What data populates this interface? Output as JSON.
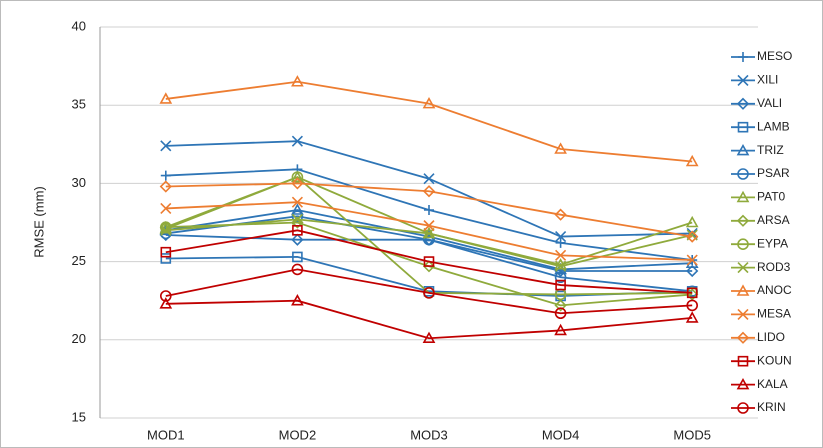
{
  "chart_data": {
    "type": "line",
    "y_label": "RMSE (mm)",
    "categories": [
      "MOD1",
      "MOD2",
      "MOD3",
      "MOD4",
      "MOD5"
    ],
    "ylim": [
      15,
      40
    ],
    "yticks": [
      15,
      20,
      25,
      30,
      35,
      40
    ],
    "grid": true,
    "legend": "right",
    "series": [
      {
        "name": "MESO",
        "color": "#2e75b6",
        "marker": "plus",
        "values": [
          30.5,
          30.9,
          28.3,
          26.2,
          25.1
        ]
      },
      {
        "name": "XILI",
        "color": "#2e75b6",
        "marker": "x",
        "values": [
          32.4,
          32.7,
          30.3,
          26.6,
          26.8
        ]
      },
      {
        "name": "VALI",
        "color": "#2e75b6",
        "marker": "diamond",
        "values": [
          26.7,
          26.4,
          26.4,
          24.4,
          24.4
        ]
      },
      {
        "name": "LAMB",
        "color": "#2e75b6",
        "marker": "square",
        "values": [
          25.2,
          25.3,
          23.1,
          22.8,
          23.1
        ]
      },
      {
        "name": "TRIZ",
        "color": "#2e75b6",
        "marker": "triangle",
        "values": [
          27.0,
          28.3,
          26.6,
          24.5,
          24.9
        ]
      },
      {
        "name": "PSAR",
        "color": "#2e75b6",
        "marker": "circle",
        "values": [
          26.8,
          27.9,
          26.4,
          24.0,
          23.1
        ]
      },
      {
        "name": "PAT0",
        "color": "#8faa3c",
        "marker": "triangle",
        "values": [
          27.1,
          30.4,
          26.8,
          24.8,
          27.5
        ]
      },
      {
        "name": "ARSA",
        "color": "#8faa3c",
        "marker": "diamond",
        "values": [
          27.2,
          27.5,
          24.7,
          22.2,
          22.9
        ]
      },
      {
        "name": "EYPA",
        "color": "#8faa3c",
        "marker": "circle",
        "values": [
          27.2,
          30.4,
          23.0,
          22.9,
          23.0
        ]
      },
      {
        "name": "ROD3",
        "color": "#8faa3c",
        "marker": "x",
        "values": [
          27.0,
          27.7,
          26.8,
          24.7,
          26.7
        ]
      },
      {
        "name": "ANOC",
        "color": "#ed7d31",
        "marker": "triangle",
        "values": [
          35.4,
          36.5,
          35.1,
          32.2,
          31.4
        ]
      },
      {
        "name": "MESA",
        "color": "#ed7d31",
        "marker": "x",
        "values": [
          28.4,
          28.8,
          27.3,
          25.4,
          25.1
        ]
      },
      {
        "name": "LIDO",
        "color": "#ed7d31",
        "marker": "diamond",
        "values": [
          29.8,
          30.0,
          29.5,
          28.0,
          26.6
        ]
      },
      {
        "name": "KOUN",
        "color": "#c00000",
        "marker": "square",
        "values": [
          25.6,
          27.0,
          25.0,
          23.5,
          23.0
        ]
      },
      {
        "name": "KALA",
        "color": "#c00000",
        "marker": "triangle",
        "values": [
          22.3,
          22.5,
          20.1,
          20.6,
          21.4
        ]
      },
      {
        "name": "KRIN",
        "color": "#c00000",
        "marker": "circle",
        "values": [
          22.8,
          24.5,
          23.0,
          21.7,
          22.2
        ]
      }
    ]
  }
}
